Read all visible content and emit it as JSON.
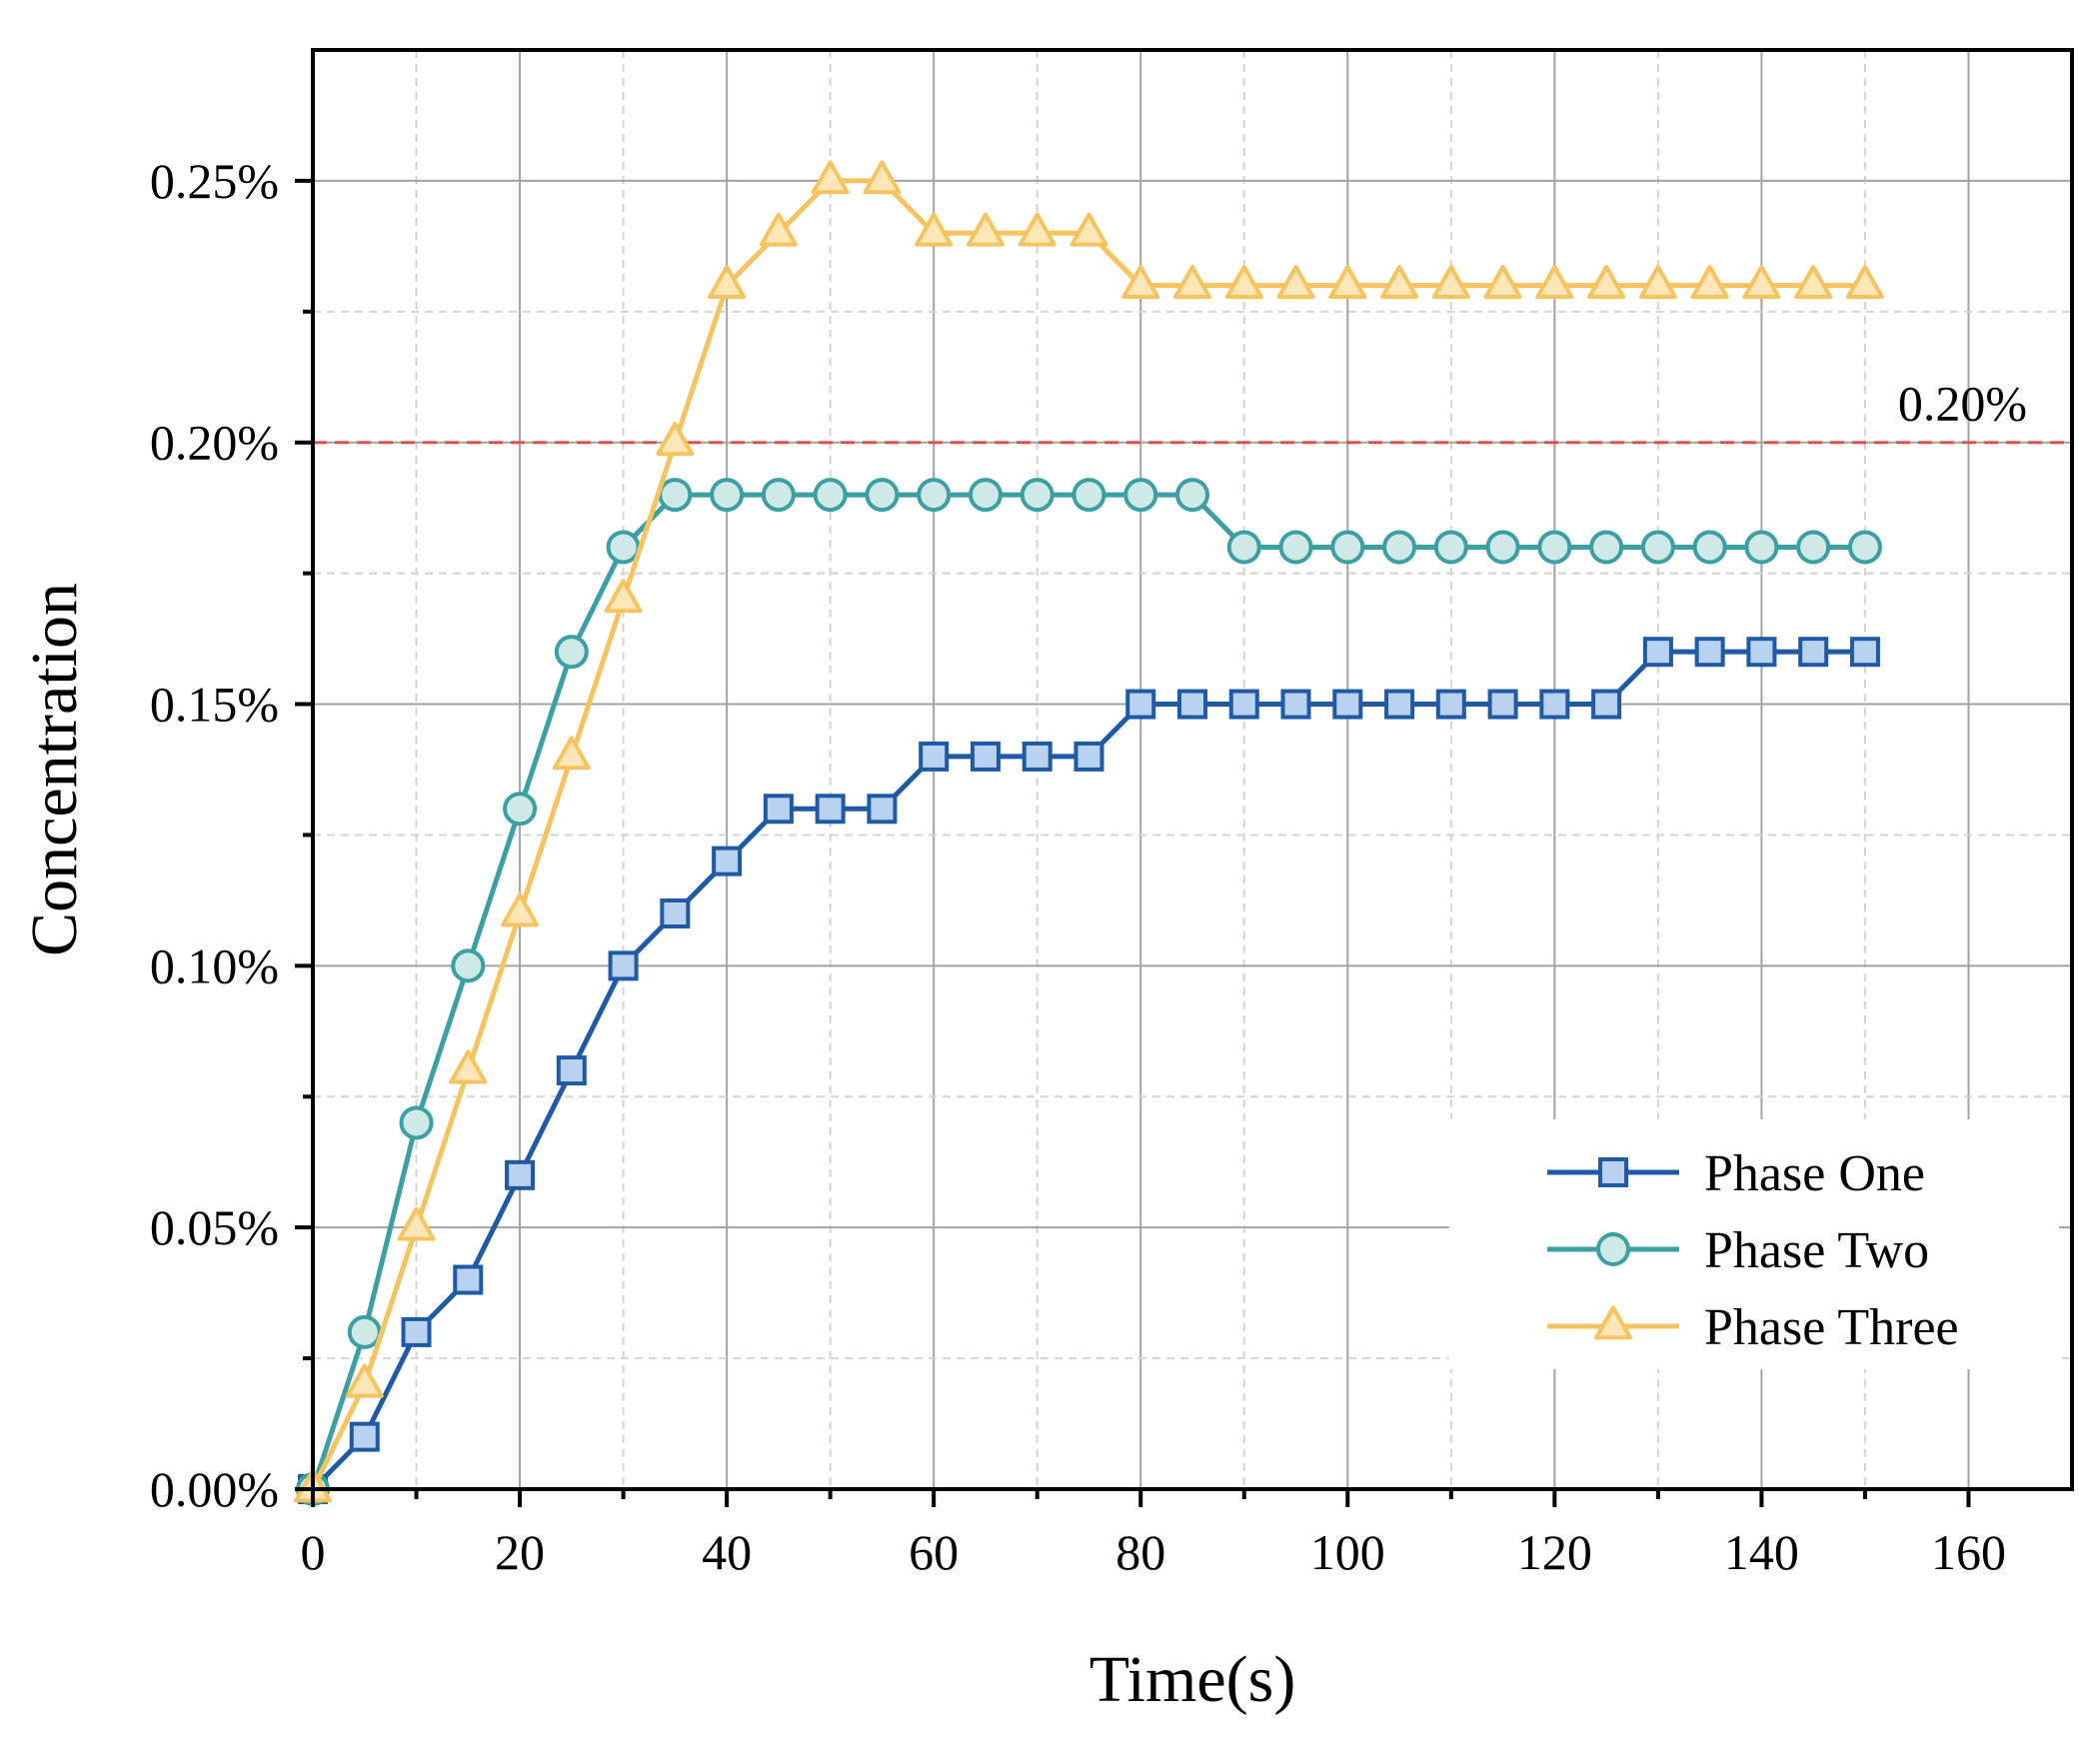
{
  "chart_data": {
    "type": "line",
    "title": "",
    "xlabel": "Time(s)",
    "ylabel": "Concentration",
    "xlim": [
      0,
      170
    ],
    "ylim": [
      0,
      0.275
    ],
    "x_major_ticks": [
      0,
      20,
      40,
      60,
      80,
      100,
      120,
      140,
      160
    ],
    "x_tick_labels": [
      "0",
      "20",
      "40",
      "60",
      "80",
      "100",
      "120",
      "140",
      "160"
    ],
    "y_major_ticks": [
      0,
      0.05,
      0.1,
      0.15,
      0.2,
      0.25
    ],
    "y_tick_labels": [
      "0.00%",
      "0.05%",
      "0.10%",
      "0.15%",
      "0.20%",
      "0.25%"
    ],
    "grid": true,
    "legend_position": "bottom-right",
    "reference_line": {
      "value": 0.2,
      "label": "0.20%",
      "color": "#d9534f"
    },
    "x": [
      0,
      5,
      10,
      15,
      20,
      25,
      30,
      35,
      40,
      45,
      50,
      55,
      60,
      65,
      70,
      75,
      80,
      85,
      90,
      95,
      100,
      105,
      110,
      115,
      120,
      125,
      130,
      135,
      140,
      145,
      150
    ],
    "series": [
      {
        "name": "Phase One",
        "marker": "square",
        "line_color": "#1f5aa6",
        "fill_color": "#b9d2ef",
        "values": [
          0.0,
          0.01,
          0.03,
          0.04,
          0.06,
          0.08,
          0.1,
          0.11,
          0.12,
          0.13,
          0.13,
          0.13,
          0.14,
          0.14,
          0.14,
          0.14,
          0.15,
          0.15,
          0.15,
          0.15,
          0.15,
          0.15,
          0.15,
          0.15,
          0.15,
          0.15,
          0.16,
          0.16,
          0.16,
          0.16,
          0.16
        ]
      },
      {
        "name": "Phase Two",
        "marker": "circle",
        "line_color": "#3aa0a3",
        "fill_color": "#cfe9e6",
        "values": [
          0.0,
          0.03,
          0.07,
          0.1,
          0.13,
          0.16,
          0.18,
          0.19,
          0.19,
          0.19,
          0.19,
          0.19,
          0.19,
          0.19,
          0.19,
          0.19,
          0.19,
          0.19,
          0.18,
          0.18,
          0.18,
          0.18,
          0.18,
          0.18,
          0.18,
          0.18,
          0.18,
          0.18,
          0.18,
          0.18,
          0.18
        ]
      },
      {
        "name": "Phase Three",
        "marker": "triangle",
        "line_color": "#f7c35f",
        "fill_color": "#fde6b7",
        "values": [
          0.0,
          0.02,
          0.05,
          0.08,
          0.11,
          0.14,
          0.17,
          0.2,
          0.23,
          0.24,
          0.25,
          0.25,
          0.24,
          0.24,
          0.24,
          0.24,
          0.23,
          0.23,
          0.23,
          0.23,
          0.23,
          0.23,
          0.23,
          0.23,
          0.23,
          0.23,
          0.23,
          0.23,
          0.23,
          0.23,
          0.23
        ]
      }
    ]
  }
}
